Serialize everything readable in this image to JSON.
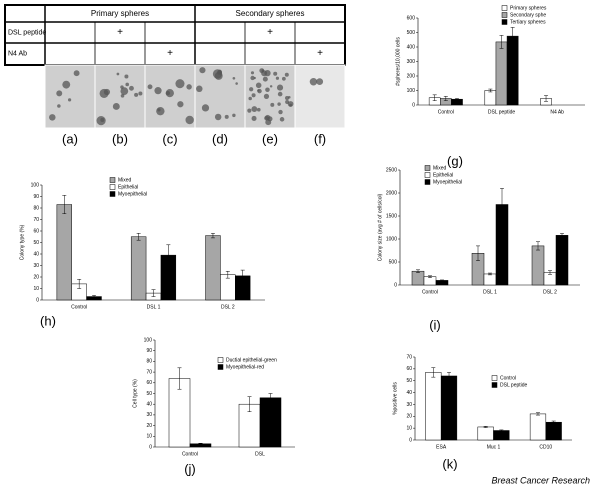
{
  "table": {
    "headers": [
      "Primary spheres",
      "Secondary spheres"
    ],
    "rows": [
      {
        "label": "DSL peptide",
        "cells": [
          null,
          "+",
          null,
          null,
          "+",
          null
        ]
      },
      {
        "label": "N4 Ab",
        "cells": [
          null,
          null,
          "+",
          null,
          null,
          "+"
        ]
      }
    ],
    "image_labels": [
      "(a)",
      "(b)",
      "(c)",
      "(d)",
      "(e)",
      "(f)"
    ]
  },
  "chart_data": [
    {
      "type": "bar",
      "panel_label": "(g)",
      "y_label": "#spheres/10,000 cells",
      "categories": [
        "Control",
        "DSL peptide",
        "N4 Ab"
      ],
      "ylim": [
        0,
        600
      ],
      "yticks": [
        0,
        100,
        200,
        300,
        400,
        500,
        600
      ],
      "series": [
        {
          "name": "Primary spheres",
          "color": "#ffffff",
          "values": [
            50,
            100,
            45
          ],
          "errors": [
            20,
            10,
            20
          ]
        },
        {
          "name": "Secondary sphe",
          "color": "#a6a6a6",
          "values": [
            45,
            435,
            null
          ],
          "errors": [
            15,
            45,
            null
          ]
        },
        {
          "name": "Tertiary spheres",
          "color": "#000000",
          "values": [
            40,
            475,
            null
          ],
          "errors": [
            5,
            60,
            null
          ]
        }
      ]
    },
    {
      "type": "bar",
      "panel_label": "(h)",
      "y_label": "Colony type (%)",
      "categories": [
        "Control",
        "DSL 1",
        "DSL 2"
      ],
      "ylim": [
        0,
        100
      ],
      "yticks": [
        0,
        10,
        20,
        30,
        40,
        50,
        60,
        70,
        80,
        90,
        100
      ],
      "series": [
        {
          "name": "Mixed",
          "color": "#a6a6a6",
          "values": [
            83,
            55,
            56
          ],
          "errors": [
            8,
            3,
            2
          ]
        },
        {
          "name": "Epithelial",
          "color": "#ffffff",
          "values": [
            14,
            6,
            22
          ],
          "errors": [
            4,
            3,
            3
          ]
        },
        {
          "name": "Myoepithelial",
          "color": "#000000",
          "values": [
            3,
            39,
            21
          ],
          "errors": [
            1,
            9,
            5
          ]
        }
      ]
    },
    {
      "type": "bar",
      "panel_label": "(i)",
      "y_label": "Colony size (avg # of cells/col)",
      "categories": [
        "Control",
        "DSL 1",
        "DSL  2"
      ],
      "ylim": [
        0,
        2500
      ],
      "yticks": [
        0,
        500,
        1000,
        1500,
        2000,
        2500
      ],
      "series": [
        {
          "name": "Mixed",
          "color": "#a6a6a6",
          "values": [
            300,
            690,
            850
          ],
          "errors": [
            30,
            160,
            90
          ]
        },
        {
          "name": "Epithelial",
          "color": "#ffffff",
          "values": [
            180,
            240,
            270
          ],
          "errors": [
            20,
            20,
            40
          ]
        },
        {
          "name": "Myoepithelial",
          "color": "#000000",
          "values": [
            100,
            1750,
            1080
          ],
          "errors": [
            10,
            350,
            40
          ]
        }
      ]
    },
    {
      "type": "bar",
      "panel_label": "(j)",
      "y_label": "Cell type (%)",
      "categories": [
        "Control",
        "DSL"
      ],
      "ylim": [
        0,
        100
      ],
      "yticks": [
        0,
        10,
        20,
        30,
        40,
        50,
        60,
        70,
        80,
        90,
        100
      ],
      "series": [
        {
          "name": "Ductial epithelial-green",
          "color": "#ffffff",
          "values": [
            64,
            40
          ],
          "errors": [
            10,
            7
          ]
        },
        {
          "name": "Myoepithelial-red",
          "color": "#000000",
          "values": [
            3,
            46
          ],
          "errors": [
            0.5,
            4
          ]
        }
      ]
    },
    {
      "type": "bar",
      "panel_label": "(k)",
      "y_label": "%positive cells",
      "categories": [
        "ESA",
        "Muc 1",
        "CD10"
      ],
      "ylim": [
        0,
        70
      ],
      "yticks": [
        0,
        10,
        20,
        30,
        40,
        50,
        60,
        70
      ],
      "series": [
        {
          "name": "Control",
          "color": "#ffffff",
          "values": [
            57,
            11,
            22
          ],
          "errors": [
            4,
            0.5,
            1
          ]
        },
        {
          "name": "DSL peptide",
          "color": "#000000",
          "values": [
            54,
            8,
            15
          ],
          "errors": [
            3,
            0.5,
            1
          ]
        }
      ]
    }
  ],
  "credit": "Breast Cancer Research"
}
